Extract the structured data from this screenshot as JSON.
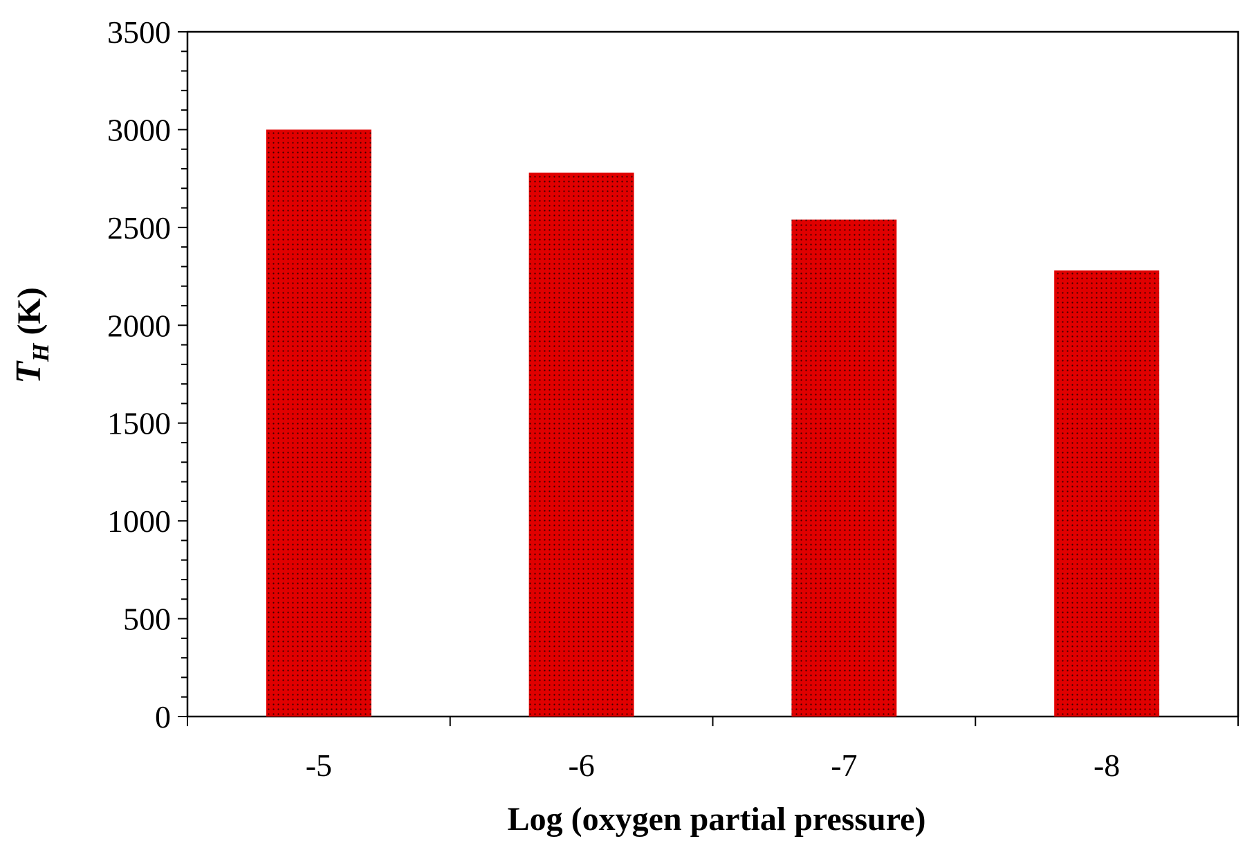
{
  "chart_data": {
    "type": "bar",
    "categories": [
      "-5",
      "-6",
      "-7",
      "-8"
    ],
    "values": [
      3000,
      2780,
      2540,
      2280
    ],
    "xlabel": "Log (oxygen partial pressure)",
    "ylabel": {
      "main": "T",
      "subscript": "H",
      "unit": " (K)"
    },
    "ylim": [
      0,
      3500
    ],
    "yticks": [
      0,
      500,
      1000,
      1500,
      2000,
      2500,
      3000,
      3500
    ],
    "y_minor_step": 100,
    "grid": false,
    "legend": "none",
    "bar_color": "#e00000",
    "bar_texture_color": "#3a0000",
    "axis_color": "#000000",
    "background": "#ffffff"
  }
}
